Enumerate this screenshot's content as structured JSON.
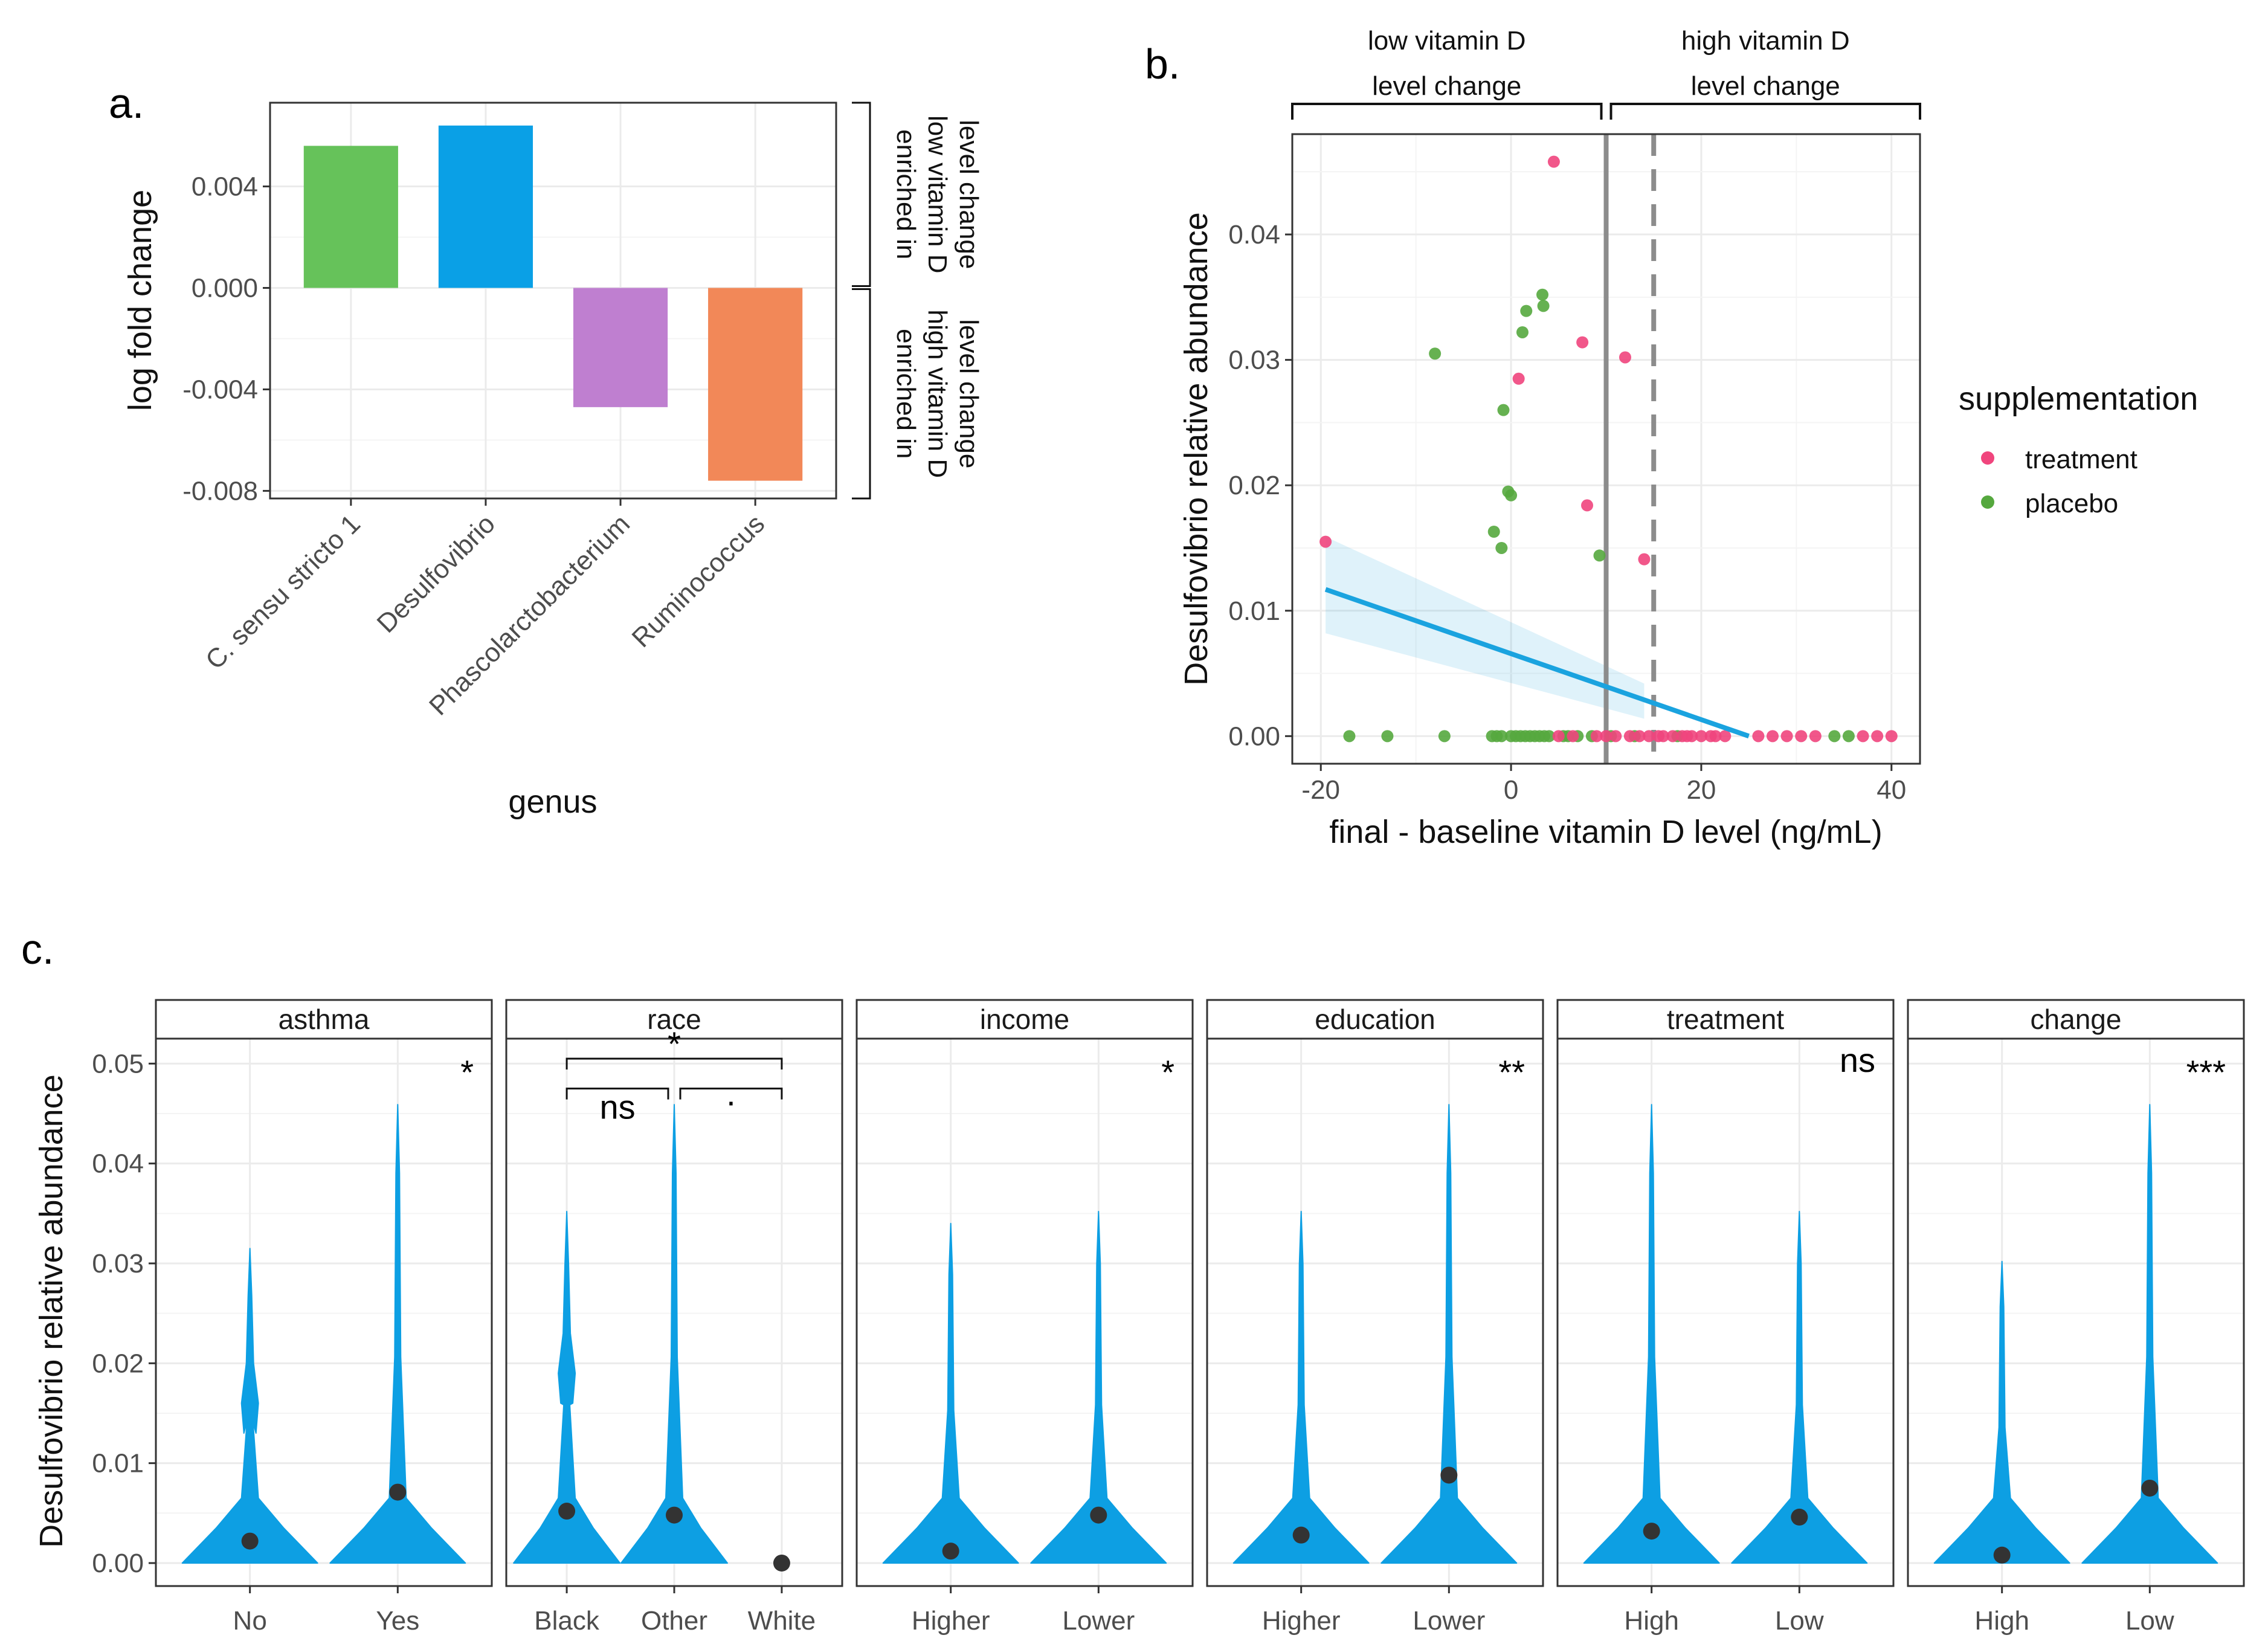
{
  "figure": {
    "panel_labels": [
      "a.",
      "b.",
      "c."
    ]
  },
  "chart_data": [
    {
      "panel": "a.",
      "type": "bar",
      "categories": [
        "C. sensu stricto 1",
        "Desulfovibrio",
        "Phascolarctobacterium",
        "Ruminococcus"
      ],
      "values": [
        0.0056,
        0.0064,
        -0.0047,
        -0.0076
      ],
      "colors": [
        "#66c25a",
        "#0aa0e6",
        "#bf7fd0",
        "#f28858"
      ],
      "xlabel": "genus",
      "ylabel": "log fold change",
      "ylim": [
        -0.0083,
        0.0073
      ],
      "yticks": [
        -0.008,
        -0.004,
        0.0,
        0.004
      ],
      "ytick_labels": [
        "-0.008",
        "-0.004",
        "0.000",
        "0.004"
      ],
      "annotations": [
        {
          "lines": [
            "enriched in",
            "low vitamin D",
            "level change"
          ],
          "range": [
            0.0,
            0.0073
          ]
        },
        {
          "lines": [
            "enriched in",
            "high vitamin D",
            "level change"
          ],
          "range": [
            -0.0083,
            0.0
          ]
        }
      ]
    },
    {
      "panel": "b.",
      "type": "scatter",
      "xlabel": "final - baseline vitamin D level (ng/mL)",
      "ylabel": "Desulfovibrio relative abundance",
      "xlim": [
        -23,
        43
      ],
      "ylim": [
        -0.0022,
        0.048
      ],
      "xticks": [
        -20,
        0,
        20,
        40
      ],
      "xtick_labels": [
        "-20",
        "0",
        "20",
        "40"
      ],
      "yticks": [
        0,
        0.01,
        0.02,
        0.03,
        0.04
      ],
      "ytick_labels": [
        "0.00",
        "0.01",
        "0.02",
        "0.03",
        "0.04"
      ],
      "legend": {
        "title": "supplementation",
        "position": "right"
      },
      "series": [
        {
          "name": "treatment",
          "color": "#f0457d",
          "points": [
            [
              -19.5,
              0.0155
            ],
            [
              4.5,
              0.0458
            ],
            [
              7.5,
              0.0314
            ],
            [
              12,
              0.0302
            ],
            [
              0.8,
              0.0285
            ],
            [
              8,
              0.0184
            ],
            [
              14,
              0.0141
            ],
            [
              5,
              0
            ],
            [
              9,
              0
            ],
            [
              11,
              0
            ],
            [
              12.5,
              0
            ],
            [
              13.5,
              0
            ],
            [
              14.5,
              0
            ],
            [
              15.5,
              0
            ],
            [
              16,
              0
            ],
            [
              17,
              0
            ],
            [
              18,
              0
            ],
            [
              19,
              0
            ],
            [
              20,
              0
            ],
            [
              21,
              0
            ],
            [
              21.5,
              0
            ],
            [
              22.5,
              0
            ],
            [
              26,
              0
            ],
            [
              27.5,
              0
            ],
            [
              29,
              0
            ],
            [
              30.5,
              0
            ],
            [
              32,
              0
            ],
            [
              37,
              0
            ],
            [
              38.5,
              0
            ],
            [
              40,
              0
            ],
            [
              6.5,
              0
            ],
            [
              10,
              0
            ],
            [
              18.5,
              0
            ]
          ]
        },
        {
          "name": "placebo",
          "color": "#55a83e",
          "points": [
            [
              -17,
              0
            ],
            [
              -13,
              0
            ],
            [
              -7,
              0
            ],
            [
              -8,
              0.0305
            ],
            [
              -2,
              0
            ],
            [
              -1.5,
              0
            ],
            [
              -1,
              0
            ],
            [
              0,
              0
            ],
            [
              0.5,
              0
            ],
            [
              1,
              0
            ],
            [
              1.5,
              0
            ],
            [
              2,
              0
            ],
            [
              2.5,
              0
            ],
            [
              3,
              0
            ],
            [
              3.5,
              0
            ],
            [
              4,
              0
            ],
            [
              5.5,
              0
            ],
            [
              6,
              0
            ],
            [
              7,
              0
            ],
            [
              8.5,
              0
            ],
            [
              10.5,
              0
            ],
            [
              13,
              0
            ],
            [
              17.5,
              0
            ],
            [
              34,
              0
            ],
            [
              35.5,
              0
            ],
            [
              1.6,
              0.0339
            ],
            [
              3.3,
              0.0352
            ],
            [
              3.4,
              0.0343
            ],
            [
              1.2,
              0.0322
            ],
            [
              -0.8,
              0.026
            ],
            [
              -0.3,
              0.0195
            ],
            [
              0,
              0.0192
            ],
            [
              -1.8,
              0.0163
            ],
            [
              -1,
              0.015
            ],
            [
              9.3,
              0.0144
            ]
          ]
        }
      ],
      "fit": {
        "x": [
          -19.5,
          25
        ],
        "y": [
          0.0117,
          0.0
        ],
        "color": "#1aa3df"
      },
      "vlines": [
        {
          "x": 10,
          "style": "solid"
        },
        {
          "x": 15,
          "style": "dashed"
        }
      ],
      "region_labels": [
        {
          "lines": [
            "low vitamin D",
            "level change"
          ],
          "range": [
            -23,
            10
          ]
        },
        {
          "lines": [
            "high vitamin D",
            "level change"
          ],
          "range": [
            10,
            43
          ]
        }
      ]
    },
    {
      "panel": "c.",
      "type": "violin",
      "ylabel": "Desulfovibrio relative abundance",
      "ylim": [
        -0.0023,
        0.0525
      ],
      "yticks": [
        0,
        0.01,
        0.02,
        0.03,
        0.04,
        0.05
      ],
      "ytick_labels": [
        "0.00",
        "0.01",
        "0.02",
        "0.03",
        "0.04",
        "0.05"
      ],
      "fill_color": "#0d9fe3",
      "facets": [
        {
          "title": "asthma",
          "significance": "*",
          "groups": [
            {
              "label": "No",
              "max": 0.0315,
              "mean": 0.0022,
              "bump": 0.016
            },
            {
              "label": "Yes",
              "max": 0.0459,
              "mean": 0.0071,
              "bump": 0.0
            }
          ]
        },
        {
          "title": "race",
          "significance": "",
          "groups": [
            {
              "label": "Black",
              "max": 0.0352,
              "mean": 0.0052,
              "bump": 0.019
            },
            {
              "label": "Other",
              "max": 0.0459,
              "mean": 0.0048,
              "bump": 0.0
            },
            {
              "label": "White",
              "max": 0.0,
              "mean": 0.0,
              "bump": 0.0
            }
          ],
          "brackets": [
            {
              "from": 0,
              "to": 1,
              "label": "ns",
              "level": 0
            },
            {
              "from": 1,
              "to": 2,
              "label": "·",
              "level": 0
            },
            {
              "from": 0,
              "to": 2,
              "label": "*",
              "level": 1
            }
          ]
        },
        {
          "title": "income",
          "significance": "*",
          "groups": [
            {
              "label": "Higher",
              "max": 0.034,
              "mean": 0.0012,
              "bump": 0.0
            },
            {
              "label": "Lower",
              "max": 0.0352,
              "mean": 0.0048,
              "bump": 0.0
            }
          ]
        },
        {
          "title": "education",
          "significance": "**",
          "groups": [
            {
              "label": "Higher",
              "max": 0.0352,
              "mean": 0.0028,
              "bump": 0.0
            },
            {
              "label": "Lower",
              "max": 0.0459,
              "mean": 0.0088,
              "bump": 0.0
            }
          ]
        },
        {
          "title": "treatment",
          "significance": "ns",
          "groups": [
            {
              "label": "High",
              "max": 0.0459,
              "mean": 0.0032,
              "bump": 0.0
            },
            {
              "label": "Low",
              "max": 0.0352,
              "mean": 0.0046,
              "bump": 0.0
            }
          ]
        },
        {
          "title": "change",
          "significance": "***",
          "groups": [
            {
              "label": "High",
              "max": 0.0302,
              "mean": 0.0008,
              "bump": 0.0
            },
            {
              "label": "Low",
              "max": 0.0459,
              "mean": 0.0075,
              "bump": 0.0
            }
          ]
        }
      ]
    }
  ]
}
